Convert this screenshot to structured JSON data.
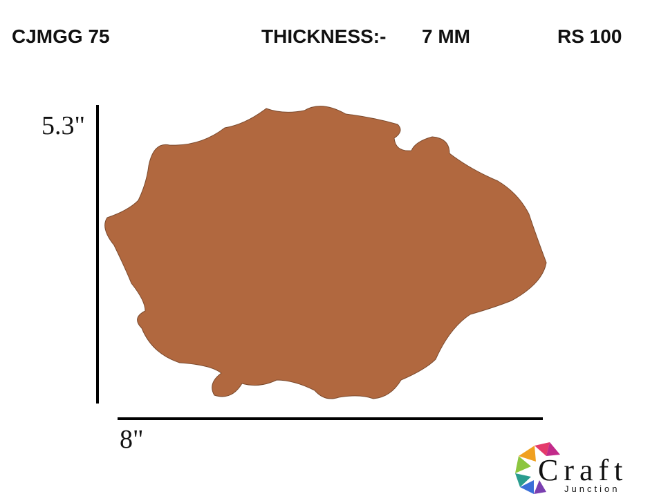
{
  "header": {
    "code": "CJMGG 75",
    "thickness_label": "THICKNESS:-",
    "thickness_value": "7 MM",
    "price": "RS 100"
  },
  "dimensions": {
    "height": "5.3\"",
    "width": "8\""
  },
  "logo": {
    "name": "Craft",
    "subname": "Junction"
  }
}
